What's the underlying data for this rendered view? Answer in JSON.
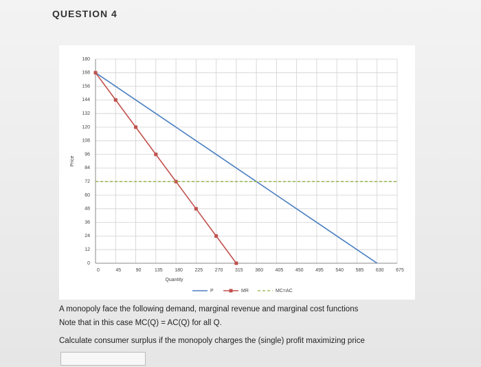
{
  "header": {
    "title": "QUESTION 4"
  },
  "chart_data": {
    "type": "line",
    "x": [
      0,
      45,
      90,
      135,
      180,
      225,
      270,
      315,
      360,
      405,
      450,
      495,
      540,
      585,
      630,
      675
    ],
    "series": [
      {
        "name": "P",
        "color": "#4a7fc1",
        "style": "solid",
        "marker": "none",
        "values": [
          168,
          156,
          144,
          132,
          120,
          108,
          96,
          84,
          72,
          60,
          48,
          36,
          24,
          12,
          0,
          null
        ]
      },
      {
        "name": "MR",
        "color": "#c0504d",
        "style": "solid",
        "marker": "square",
        "values": [
          168,
          144,
          120,
          96,
          72,
          48,
          24,
          0,
          null,
          null,
          null,
          null,
          null,
          null,
          null,
          null
        ]
      },
      {
        "name": "MC=AC",
        "color": "#9bbb59",
        "style": "dashed",
        "marker": "none",
        "values": [
          72,
          72,
          72,
          72,
          72,
          72,
          72,
          72,
          72,
          72,
          72,
          72,
          72,
          72,
          72,
          72
        ]
      }
    ],
    "xlim": [
      0,
      675
    ],
    "ylim": [
      0,
      180
    ],
    "xticks": [
      0,
      45,
      90,
      135,
      180,
      225,
      270,
      315,
      360,
      405,
      450,
      495,
      540,
      585,
      630,
      675
    ],
    "yticks": [
      0,
      12,
      24,
      36,
      48,
      60,
      72,
      84,
      96,
      108,
      120,
      132,
      144,
      156,
      168,
      180
    ],
    "xlabel": "Quantity",
    "ylabel": "Price",
    "grid": true,
    "legend": "bottom"
  },
  "question": {
    "lines": [
      "A monopoly face the following demand, marginal revenue and marginal cost functions",
      "Note that in this case MC(Q) = AC(Q) for all Q.",
      "Calculate consumer surplus if the monopoly charges the (single) profit maximizing price"
    ]
  }
}
